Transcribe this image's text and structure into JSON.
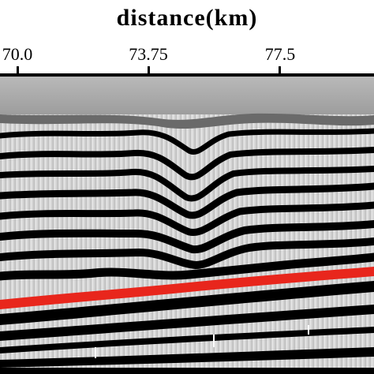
{
  "axis_title": "distance(km)",
  "ticks": [
    {
      "label": "70.0",
      "value": 70.0
    },
    {
      "label": "73.75",
      "value": 73.75
    },
    {
      "label": "77.5",
      "value": 77.5
    }
  ],
  "colors": {
    "horizon": "#e8261c",
    "ink": "#000000",
    "water": "#a9a9a9"
  }
}
